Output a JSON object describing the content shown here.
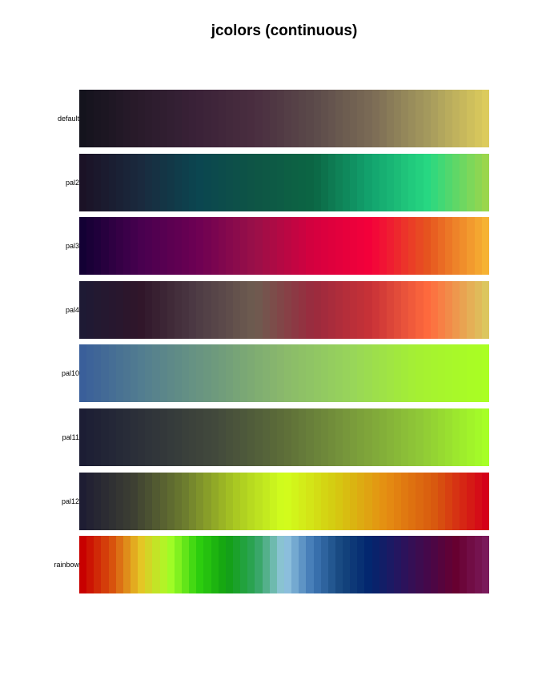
{
  "chart_data": {
    "type": "heatmap",
    "title": "jcolors (continuous)",
    "palettes": [
      {
        "name": "default",
        "stops": [
          "#14131d",
          "#2a1b2b",
          "#3a2238",
          "#4a2e40",
          "#5b4a4a",
          "#7a6a55",
          "#a59a5d",
          "#dccb5c"
        ]
      },
      {
        "name": "pal2",
        "stops": [
          "#1b1226",
          "#1a2a3e",
          "#0b4550",
          "#0e5545",
          "#0c6644",
          "#12a36e",
          "#27d882",
          "#9ad64c"
        ]
      },
      {
        "name": "pal3",
        "stops": [
          "#130034",
          "#48004f",
          "#6d0053",
          "#9a1048",
          "#d5003f",
          "#f4003a",
          "#e6551f",
          "#f6b233"
        ]
      },
      {
        "name": "pal4",
        "stops": [
          "#1e1a34",
          "#30152a",
          "#4e3c45",
          "#6e5c50",
          "#9a2a3e",
          "#c83137",
          "#ff6a3d",
          "#dcc65e"
        ]
      },
      {
        "name": "pal10",
        "stops": [
          "#3a5f9a",
          "#56818e",
          "#6f9b7c",
          "#8ab96b",
          "#98d55a",
          "#a5f032",
          "#aaff22"
        ]
      },
      {
        "name": "pal11",
        "stops": [
          "#1c1d34",
          "#2f343a",
          "#434a3c",
          "#5d6e39",
          "#799a3b",
          "#8fc737",
          "#a6ff27"
        ]
      },
      {
        "name": "pal12",
        "stops": [
          "#1e1d33",
          "#3d3f33",
          "#6b7a2f",
          "#a8c622",
          "#d2ff1d",
          "#d4cb11",
          "#e58f12",
          "#d8580f",
          "#d40018"
        ]
      },
      {
        "name": "rainbow",
        "stops": [
          "#c80000",
          "#d8500d",
          "#e6c425",
          "#a6ff27",
          "#2ed10e",
          "#11a012",
          "#2ea35a",
          "#96c8e2",
          "#3e76b4",
          "#15467d",
          "#02256e",
          "#26155f",
          "#460849",
          "#680030",
          "#7a1a5a"
        ]
      }
    ]
  }
}
